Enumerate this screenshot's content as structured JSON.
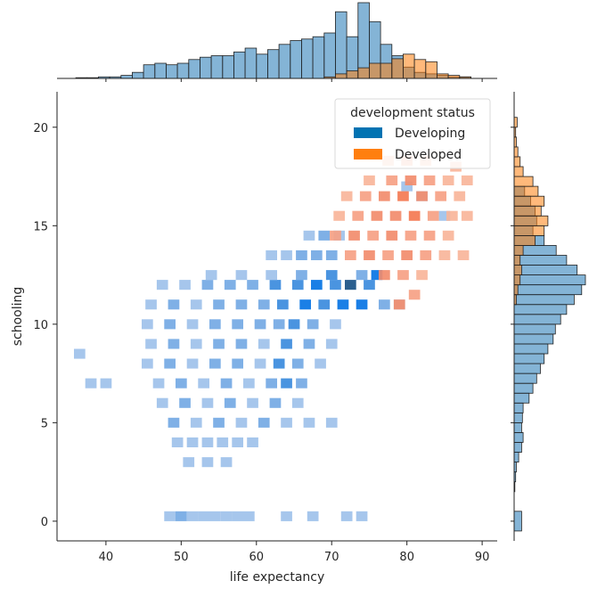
{
  "chart_data": {
    "type": "heatmap",
    "title": "",
    "xlabel": "life expectancy",
    "ylabel": "schooling",
    "xlim": [
      33.5,
      92
    ],
    "ylim": [
      -1,
      21.8
    ],
    "xticks": [
      40,
      50,
      60,
      70,
      80,
      90
    ],
    "yticks": [
      0,
      5,
      10,
      15,
      20
    ],
    "legend": {
      "title": "development status",
      "placement": "top-right",
      "entries": [
        {
          "label": "Developing",
          "color": "#0173b2"
        },
        {
          "label": "Developed",
          "color": "#ff7f0e"
        }
      ]
    },
    "series": [
      {
        "name": "Developing",
        "color": "#1f77b4",
        "heatmap_cells": [
          [
            48.5,
            0.25,
            1
          ],
          [
            50.0,
            0.25,
            2
          ],
          [
            51.5,
            0.25,
            1
          ],
          [
            53.0,
            0.25,
            1
          ],
          [
            54.5,
            0.25,
            1
          ],
          [
            56.0,
            0.25,
            1
          ],
          [
            57.5,
            0.25,
            1
          ],
          [
            59.0,
            0.25,
            1
          ],
          [
            64.0,
            0.25,
            1
          ],
          [
            67.5,
            0.25,
            1
          ],
          [
            72.0,
            0.25,
            1
          ],
          [
            74.0,
            0.25,
            1
          ],
          [
            51.0,
            3.0,
            1
          ],
          [
            53.5,
            3.0,
            1
          ],
          [
            56.0,
            3.0,
            1
          ],
          [
            49.5,
            4.0,
            1
          ],
          [
            51.5,
            4.0,
            1
          ],
          [
            53.5,
            4.0,
            1
          ],
          [
            55.5,
            4.0,
            1
          ],
          [
            57.5,
            4.0,
            1
          ],
          [
            59.5,
            4.0,
            1
          ],
          [
            49.0,
            5.0,
            2
          ],
          [
            52.0,
            5.0,
            1
          ],
          [
            55.0,
            5.0,
            2
          ],
          [
            58.0,
            5.0,
            1
          ],
          [
            61.0,
            5.0,
            2
          ],
          [
            64.0,
            5.0,
            1
          ],
          [
            67.0,
            5.0,
            1
          ],
          [
            70.0,
            5.0,
            1
          ],
          [
            47.5,
            6.0,
            1
          ],
          [
            50.5,
            6.0,
            2
          ],
          [
            53.5,
            6.0,
            1
          ],
          [
            56.5,
            6.0,
            2
          ],
          [
            59.5,
            6.0,
            1
          ],
          [
            62.5,
            6.0,
            2
          ],
          [
            65.5,
            6.0,
            1
          ],
          [
            38.0,
            7.0,
            1
          ],
          [
            40.0,
            7.0,
            1
          ],
          [
            47.0,
            7.0,
            1
          ],
          [
            50.0,
            7.0,
            2
          ],
          [
            53.0,
            7.0,
            1
          ],
          [
            56.0,
            7.0,
            2
          ],
          [
            59.0,
            7.0,
            1
          ],
          [
            62.0,
            7.0,
            2
          ],
          [
            64.0,
            7.0,
            3
          ],
          [
            66.0,
            7.0,
            2
          ],
          [
            45.5,
            8.0,
            1
          ],
          [
            48.5,
            8.0,
            2
          ],
          [
            51.5,
            8.0,
            1
          ],
          [
            54.5,
            8.0,
            2
          ],
          [
            57.5,
            8.0,
            2
          ],
          [
            60.5,
            8.0,
            1
          ],
          [
            63.0,
            8.0,
            3
          ],
          [
            65.5,
            8.0,
            2
          ],
          [
            68.5,
            8.0,
            1
          ],
          [
            36.5,
            8.5,
            1
          ],
          [
            46.0,
            9.0,
            1
          ],
          [
            49.0,
            9.0,
            2
          ],
          [
            52.0,
            9.0,
            1
          ],
          [
            55.0,
            9.0,
            2
          ],
          [
            58.0,
            9.0,
            2
          ],
          [
            61.0,
            9.0,
            1
          ],
          [
            64.0,
            9.0,
            3
          ],
          [
            67.0,
            9.0,
            2
          ],
          [
            70.0,
            9.0,
            1
          ],
          [
            45.5,
            10.0,
            1
          ],
          [
            48.5,
            10.0,
            2
          ],
          [
            51.5,
            10.0,
            1
          ],
          [
            54.5,
            10.0,
            2
          ],
          [
            57.5,
            10.0,
            2
          ],
          [
            60.5,
            10.0,
            2
          ],
          [
            63.0,
            10.0,
            2
          ],
          [
            65.0,
            10.0,
            3
          ],
          [
            67.5,
            10.0,
            2
          ],
          [
            70.5,
            10.0,
            1
          ],
          [
            46.0,
            11.0,
            1
          ],
          [
            49.0,
            11.0,
            2
          ],
          [
            52.0,
            11.0,
            1
          ],
          [
            55.0,
            11.0,
            2
          ],
          [
            58.0,
            11.0,
            2
          ],
          [
            61.0,
            11.0,
            2
          ],
          [
            63.5,
            11.0,
            3
          ],
          [
            66.5,
            11.0,
            4
          ],
          [
            69.0,
            11.0,
            3
          ],
          [
            71.5,
            11.0,
            4
          ],
          [
            74.0,
            11.0,
            4
          ],
          [
            77.0,
            11.0,
            2
          ],
          [
            79.0,
            11.0,
            1
          ],
          [
            47.5,
            12.0,
            1
          ],
          [
            50.5,
            12.0,
            1
          ],
          [
            53.5,
            12.0,
            2
          ],
          [
            56.5,
            12.0,
            2
          ],
          [
            59.5,
            12.0,
            2
          ],
          [
            62.5,
            12.0,
            3
          ],
          [
            65.5,
            12.0,
            3
          ],
          [
            68.0,
            12.0,
            4
          ],
          [
            70.5,
            12.0,
            3
          ],
          [
            72.5,
            12.0,
            5
          ],
          [
            75.0,
            12.0,
            3
          ],
          [
            54.0,
            12.5,
            1
          ],
          [
            58.0,
            12.5,
            1
          ],
          [
            62.0,
            12.5,
            1
          ],
          [
            66.0,
            12.5,
            2
          ],
          [
            70.0,
            12.5,
            3
          ],
          [
            74.0,
            12.5,
            2
          ],
          [
            76.0,
            12.5,
            4
          ],
          [
            62.0,
            13.5,
            1
          ],
          [
            64.0,
            13.5,
            1
          ],
          [
            66.0,
            13.5,
            2
          ],
          [
            68.0,
            13.5,
            2
          ],
          [
            70.0,
            13.5,
            2
          ],
          [
            67.0,
            14.5,
            1
          ],
          [
            69.0,
            14.5,
            2
          ],
          [
            71.0,
            14.5,
            1
          ],
          [
            80.0,
            17.0,
            1
          ],
          [
            82.0,
            16.5,
            1
          ],
          [
            85.0,
            15.5,
            1
          ]
        ],
        "marginal_x": {
          "bin_edges": [
            36,
            37.5,
            39,
            40.5,
            42,
            43.5,
            45,
            46.5,
            48,
            49.5,
            51,
            52.5,
            54,
            55.5,
            57,
            58.5,
            60,
            61.5,
            63,
            64.5,
            66,
            67.5,
            69,
            70.5,
            72,
            73.5,
            75,
            76.5,
            78,
            79.5,
            81,
            82.5,
            84,
            85.5,
            87,
            88.5
          ],
          "counts": [
            1,
            1,
            2,
            2,
            4,
            8,
            18,
            20,
            18,
            20,
            25,
            28,
            30,
            30,
            35,
            40,
            32,
            38,
            45,
            50,
            52,
            55,
            60,
            88,
            55,
            100,
            75,
            45,
            30,
            15,
            8,
            6,
            4,
            2,
            2
          ]
        },
        "marginal_y": {
          "bin_edges": [
            -0.5,
            0.5,
            1.0,
            1.5,
            2.0,
            2.5,
            3.0,
            3.5,
            4.0,
            4.5,
            5.0,
            5.5,
            6.0,
            6.5,
            7.0,
            7.5,
            8.0,
            8.5,
            9.0,
            9.5,
            10.0,
            10.5,
            11.0,
            11.5,
            12.0,
            12.5,
            13.0,
            13.5,
            14.0,
            14.5,
            15.0,
            15.5,
            16.0,
            16.5,
            17.0
          ],
          "counts": [
            10,
            0,
            0,
            1,
            2,
            3,
            6,
            10,
            12,
            10,
            11,
            12,
            20,
            25,
            30,
            35,
            40,
            45,
            52,
            55,
            62,
            70,
            80,
            90,
            95,
            84,
            70,
            56,
            40,
            25,
            30,
            28,
            22,
            14
          ]
        }
      },
      {
        "name": "Developed",
        "color": "#ff7f0e",
        "heatmap_cells": [
          [
            79.0,
            11.0,
            3
          ],
          [
            81.0,
            11.5,
            2
          ],
          [
            77.0,
            12.5,
            3
          ],
          [
            79.5,
            12.5,
            2
          ],
          [
            82.0,
            12.5,
            1
          ],
          [
            72.5,
            13.5,
            2
          ],
          [
            75.0,
            13.5,
            3
          ],
          [
            77.5,
            13.5,
            2
          ],
          [
            80.0,
            13.5,
            3
          ],
          [
            82.5,
            13.5,
            2
          ],
          [
            85.0,
            13.5,
            1
          ],
          [
            87.5,
            13.5,
            1
          ],
          [
            70.5,
            14.5,
            2
          ],
          [
            73.0,
            14.5,
            3
          ],
          [
            75.5,
            14.5,
            2
          ],
          [
            78.0,
            14.5,
            3
          ],
          [
            80.5,
            14.5,
            2
          ],
          [
            83.0,
            14.5,
            2
          ],
          [
            85.5,
            14.5,
            1
          ],
          [
            71.0,
            15.5,
            1
          ],
          [
            73.5,
            15.5,
            2
          ],
          [
            76.0,
            15.5,
            3
          ],
          [
            78.5,
            15.5,
            3
          ],
          [
            81.0,
            15.5,
            4
          ],
          [
            83.5,
            15.5,
            2
          ],
          [
            86.0,
            15.5,
            1
          ],
          [
            88.0,
            15.5,
            1
          ],
          [
            72.0,
            16.5,
            1
          ],
          [
            74.5,
            16.5,
            2
          ],
          [
            77.0,
            16.5,
            3
          ],
          [
            79.5,
            16.5,
            4
          ],
          [
            82.0,
            16.5,
            3
          ],
          [
            84.5,
            16.5,
            2
          ],
          [
            87.0,
            16.5,
            1
          ],
          [
            75.0,
            17.3,
            1
          ],
          [
            78.0,
            17.3,
            2
          ],
          [
            80.5,
            17.3,
            3
          ],
          [
            83.0,
            17.3,
            2
          ],
          [
            85.5,
            17.3,
            1
          ],
          [
            88.0,
            17.3,
            1
          ],
          [
            77.5,
            18.3,
            1
          ],
          [
            80.0,
            18.3,
            2
          ],
          [
            82.5,
            18.3,
            1
          ],
          [
            86.5,
            18.0,
            1
          ]
        ],
        "marginal_x": {
          "bin_edges": [
            69,
            70.5,
            72,
            73.5,
            75,
            76.5,
            78,
            79.5,
            81,
            82.5,
            84,
            85.5,
            87,
            88.5
          ],
          "counts": [
            2,
            6,
            10,
            14,
            20,
            20,
            26,
            32,
            25,
            22,
            6,
            4,
            2
          ]
        },
        "marginal_y": {
          "bin_edges": [
            11.0,
            11.5,
            12.0,
            12.5,
            13.0,
            13.5,
            14.0,
            14.5,
            15.0,
            15.5,
            16.0,
            16.5,
            17.0,
            17.5,
            18.0,
            18.5,
            19.0,
            19.5,
            20.0,
            20.5
          ],
          "counts": [
            3,
            5,
            8,
            10,
            8,
            12,
            28,
            40,
            45,
            36,
            40,
            32,
            25,
            12,
            8,
            5,
            3,
            2,
            4
          ]
        }
      }
    ]
  }
}
